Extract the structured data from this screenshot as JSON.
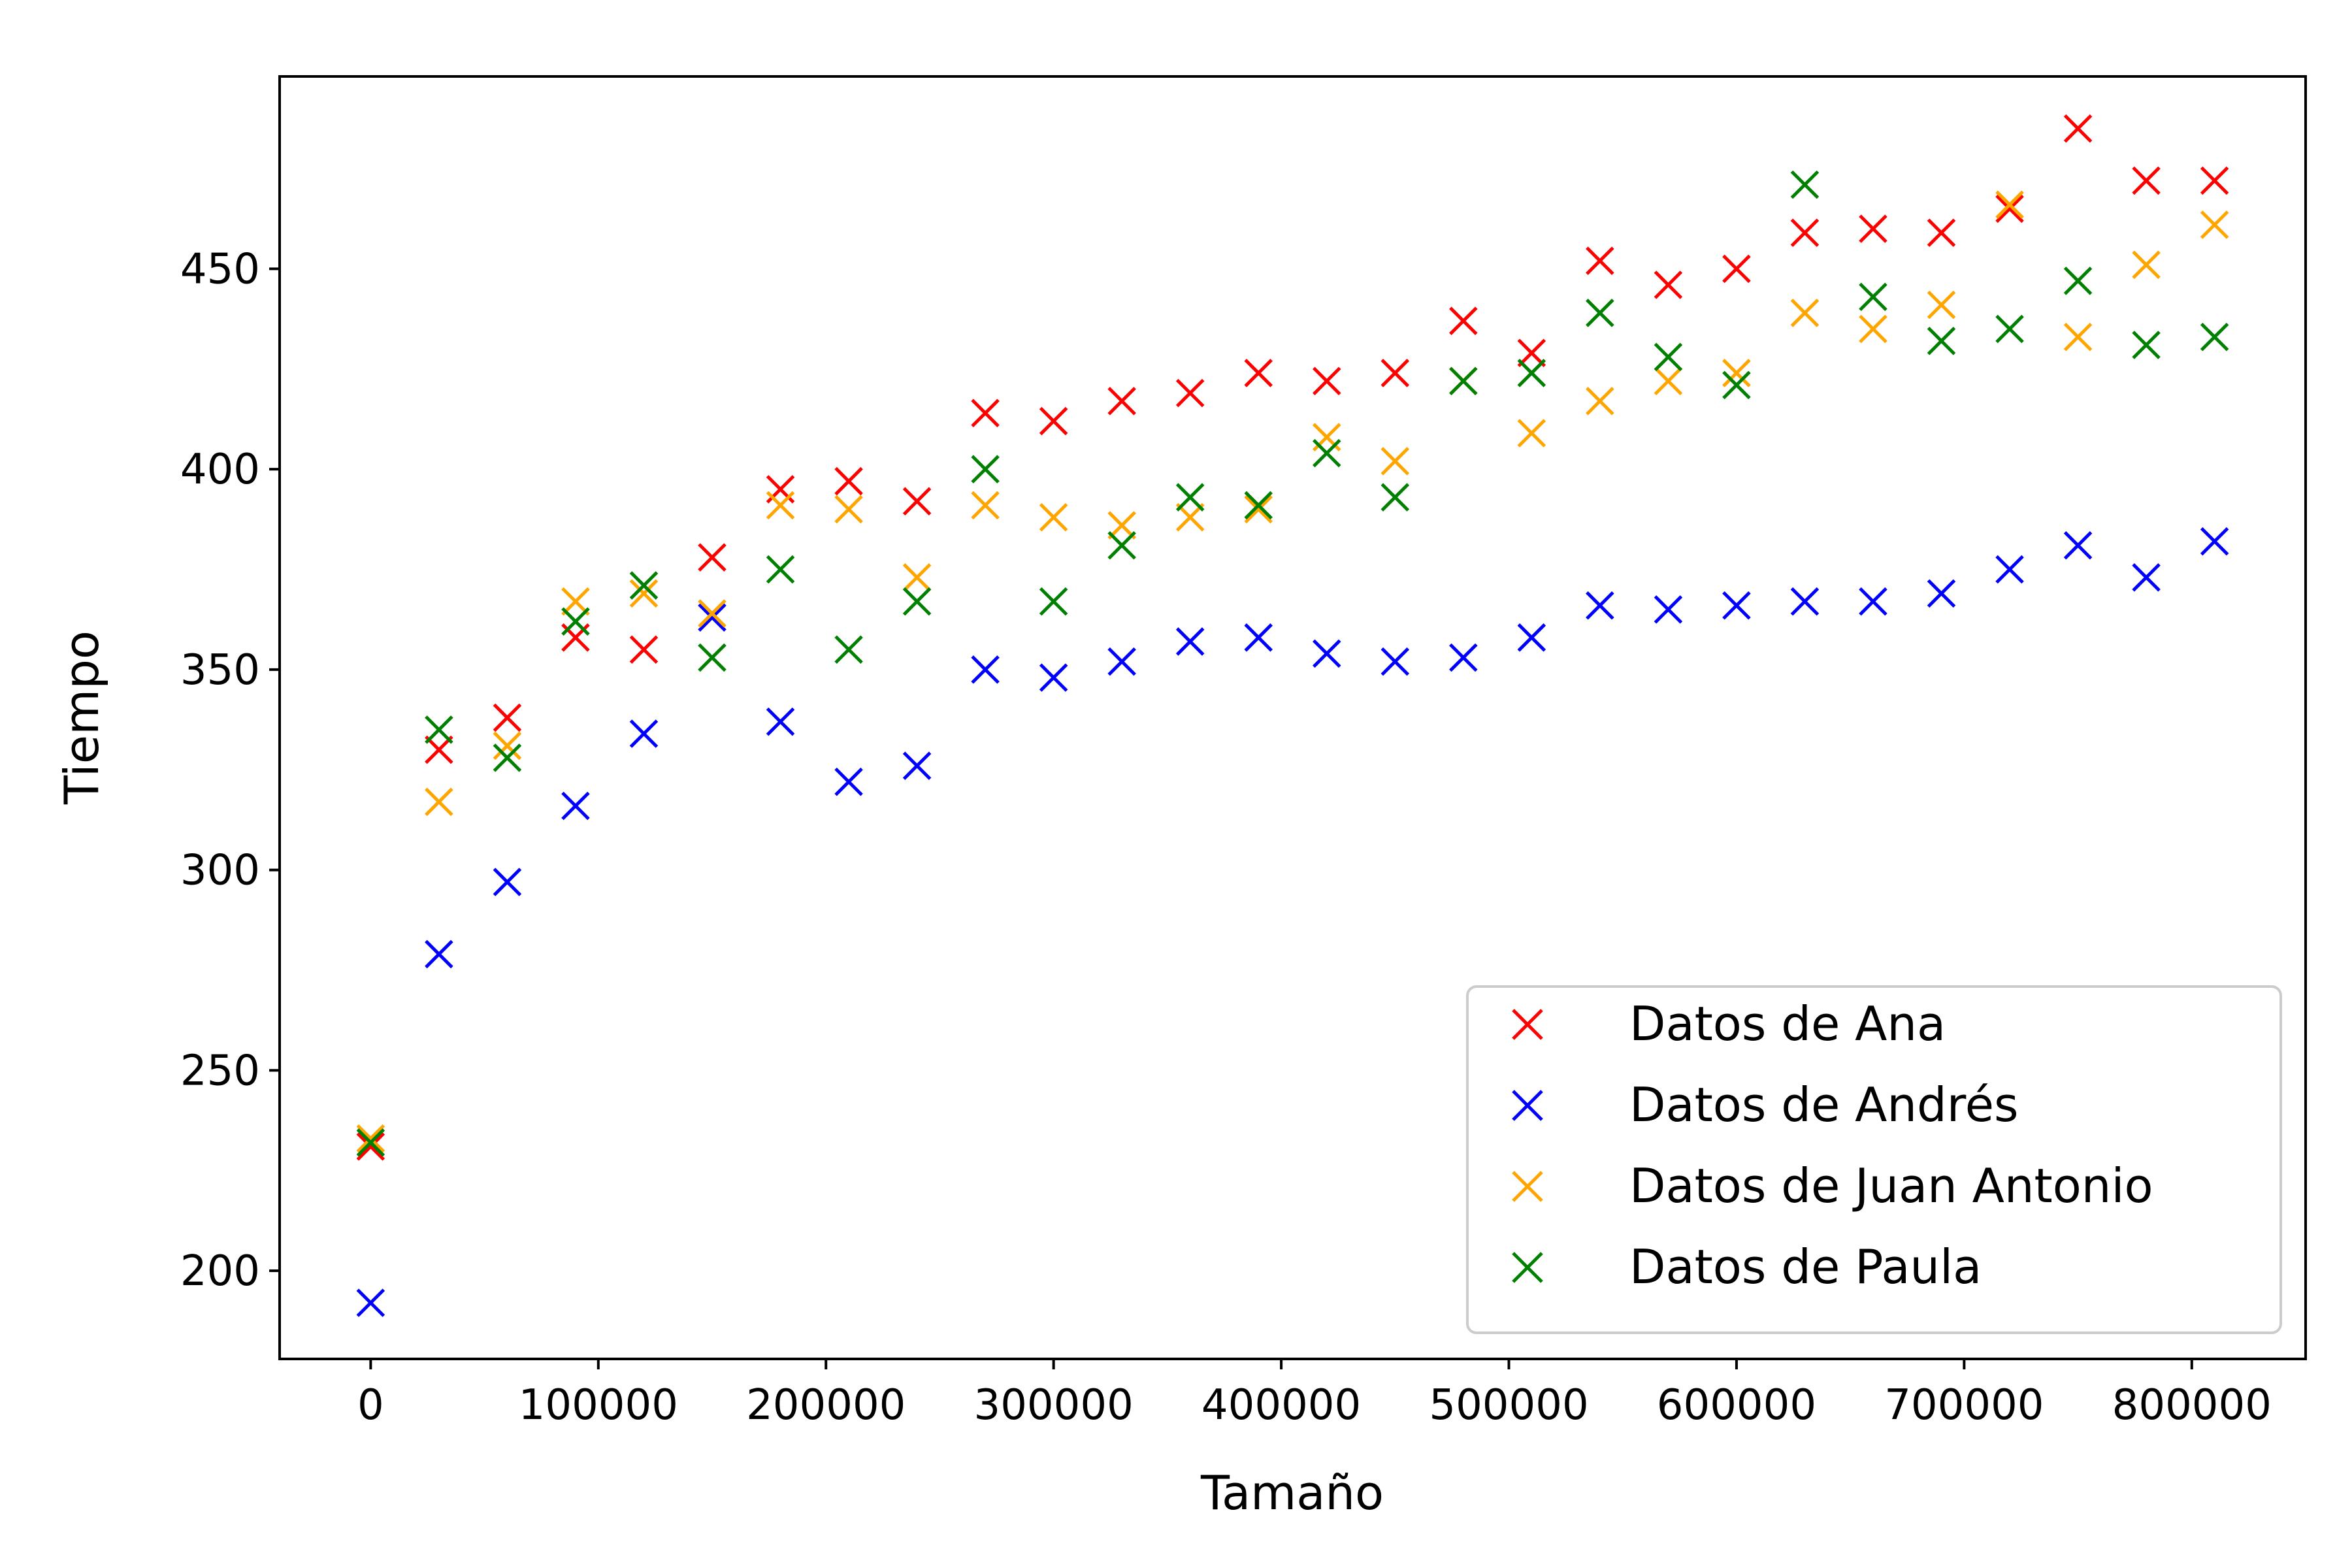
{
  "chart_data": {
    "type": "scatter",
    "title": "",
    "xlabel": "Tamaño",
    "ylabel": "Tiempo",
    "xlim": [
      -40000,
      850000
    ],
    "ylim": [
      178,
      498
    ],
    "xticks": [
      0,
      100000,
      200000,
      300000,
      400000,
      500000,
      600000,
      700000,
      800000
    ],
    "yticks": [
      200,
      250,
      300,
      350,
      400,
      450
    ],
    "grid": false,
    "legend_position": "lower-right",
    "marker": "x",
    "x": [
      0,
      30000,
      60000,
      90000,
      120000,
      150000,
      180000,
      210000,
      240000,
      270000,
      300000,
      330000,
      360000,
      390000,
      420000,
      450000,
      480000,
      510000,
      540000,
      570000,
      600000,
      630000,
      660000,
      690000,
      720000,
      750000,
      780000,
      810000
    ],
    "series": [
      {
        "name": "Datos de Ana",
        "color": "#ff0000",
        "values": [
          231,
          330,
          338,
          358,
          355,
          378,
          395,
          397,
          392,
          414,
          412,
          417,
          419,
          424,
          422,
          424,
          437,
          429,
          452,
          446,
          450,
          459,
          460,
          459,
          465,
          485,
          472,
          472
        ]
      },
      {
        "name": "Datos de Andrés",
        "color": "#0000ff",
        "values": [
          192,
          279,
          297,
          316,
          334,
          363,
          337,
          322,
          326,
          350,
          348,
          352,
          357,
          358,
          354,
          352,
          353,
          358,
          366,
          365,
          366,
          367,
          367,
          369,
          375,
          381,
          373,
          382
        ]
      },
      {
        "name": "Datos de Juan Antonio",
        "color": "#ffa500",
        "values": [
          233,
          317,
          331,
          367,
          369,
          364,
          391,
          390,
          373,
          391,
          388,
          386,
          388,
          390,
          408,
          402,
          422,
          409,
          417,
          422,
          424,
          439,
          435,
          441,
          466,
          433,
          451,
          461
        ]
      },
      {
        "name": "Datos de Paula",
        "color": "#008000",
        "values": [
          232,
          335,
          328,
          362,
          371,
          353,
          375,
          355,
          367,
          400,
          367,
          381,
          393,
          391,
          404,
          393,
          422,
          424,
          439,
          428,
          421,
          471,
          443,
          432,
          435,
          447,
          431,
          433
        ]
      }
    ]
  }
}
